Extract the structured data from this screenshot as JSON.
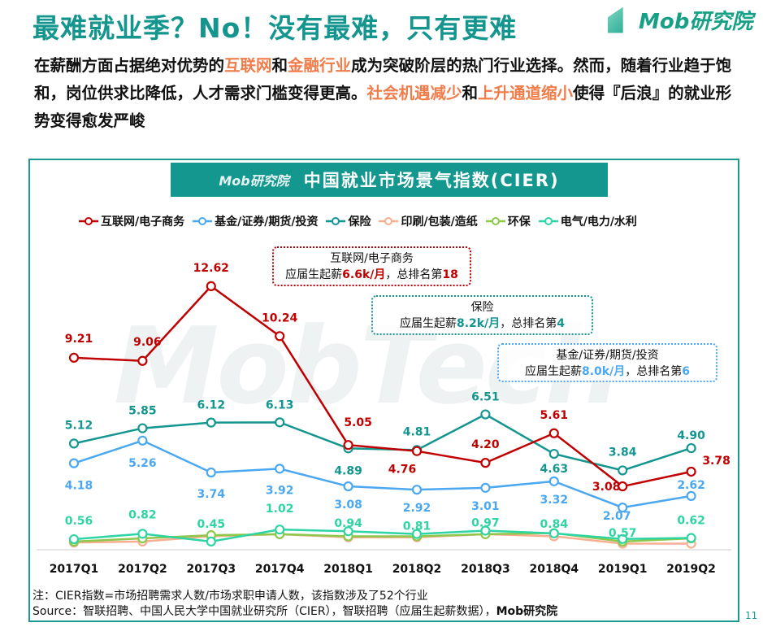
{
  "header": {
    "title": "最难就业季？No！没有最难，只有更难",
    "logo": "Mob研究院"
  },
  "intro": {
    "p1": "在薪酬方面占据绝对优势的",
    "h1": "互联网",
    "p2": "和",
    "h2": "金融行业",
    "p3": "成为突破阶层的热门行业选择。然而，随着行业趋于饱和，岗位供求比降低，人才需求门槛变得更高。",
    "h3": "社会机遇减少",
    "p4": "和",
    "h4": "上升通道缩小",
    "p5": "使得『后浪』的就业形势变得愈发严峻"
  },
  "chart_data": {
    "type": "line",
    "title": "中国就业市场景气指数(CIER)",
    "banner_logo": "Mob研究院",
    "watermark": "MobTech",
    "categories": [
      "2017Q1",
      "2017Q2",
      "2017Q3",
      "2017Q4",
      "2018Q1",
      "2018Q2",
      "2018Q3",
      "2018Q4",
      "2019Q1",
      "2019Q2"
    ],
    "legend_position": "top",
    "grid": false,
    "series": [
      {
        "name": "互联网/电子商务",
        "color": "#c00000",
        "values": [
          9.21,
          9.06,
          12.62,
          10.24,
          5.05,
          4.76,
          4.2,
          5.61,
          3.08,
          3.78
        ],
        "labeled": true
      },
      {
        "name": "基金/证券/期货/投资",
        "color": "#4ba8f0",
        "values": [
          4.18,
          5.26,
          3.74,
          3.92,
          3.08,
          2.92,
          3.01,
          3.32,
          2.07,
          2.62
        ],
        "labeled": true
      },
      {
        "name": "保险",
        "color": "#13968f",
        "values": [
          5.12,
          5.85,
          6.12,
          6.13,
          4.89,
          4.81,
          6.51,
          4.63,
          3.84,
          4.9
        ],
        "labeled": true
      },
      {
        "name": "印刷/包装/造纸",
        "color": "#f8ae90",
        "values": [
          0.4,
          0.45,
          0.7,
          0.8,
          0.65,
          0.65,
          0.8,
          0.7,
          0.35,
          0.35
        ],
        "labeled": false
      },
      {
        "name": "环保",
        "color": "#8cc84b",
        "values": [
          0.45,
          0.6,
          0.75,
          0.8,
          0.7,
          0.7,
          0.8,
          0.85,
          0.45,
          0.6
        ],
        "labeled": false
      },
      {
        "name": "电气/电力/水利",
        "color": "#2fd4a4",
        "values": [
          0.56,
          0.82,
          0.45,
          1.02,
          0.94,
          0.81,
          0.97,
          0.84,
          0.57,
          0.62
        ],
        "labeled": true
      }
    ],
    "annotations": [
      {
        "line1": "互联网/电子商务",
        "pre": "应届生起薪",
        "salary": "6.6k/月",
        "mid": "，总排名第",
        "rank": "18",
        "color": "#c00000"
      },
      {
        "line1": "保险",
        "pre": "应届生起薪",
        "salary": "8.2k/月",
        "mid": "，总排名第",
        "rank": "4",
        "color": "#13968f"
      },
      {
        "line1": "基金/证券/期货/投资",
        "pre": "应届生起薪",
        "salary": "8.0k/月",
        "mid": "，总排名第",
        "rank": "6",
        "color": "#4ba8f0"
      }
    ]
  },
  "footer": {
    "note": "注：CIER指数=市场招聘需求人数/市场求职申请人数，该指数涉及了52个行业",
    "source": "Source：智联招聘、中国人民大学中国就业研究所（CIER），智联招聘（应届生起薪数据），",
    "source_bold": "Mob研究院",
    "page": "11"
  }
}
